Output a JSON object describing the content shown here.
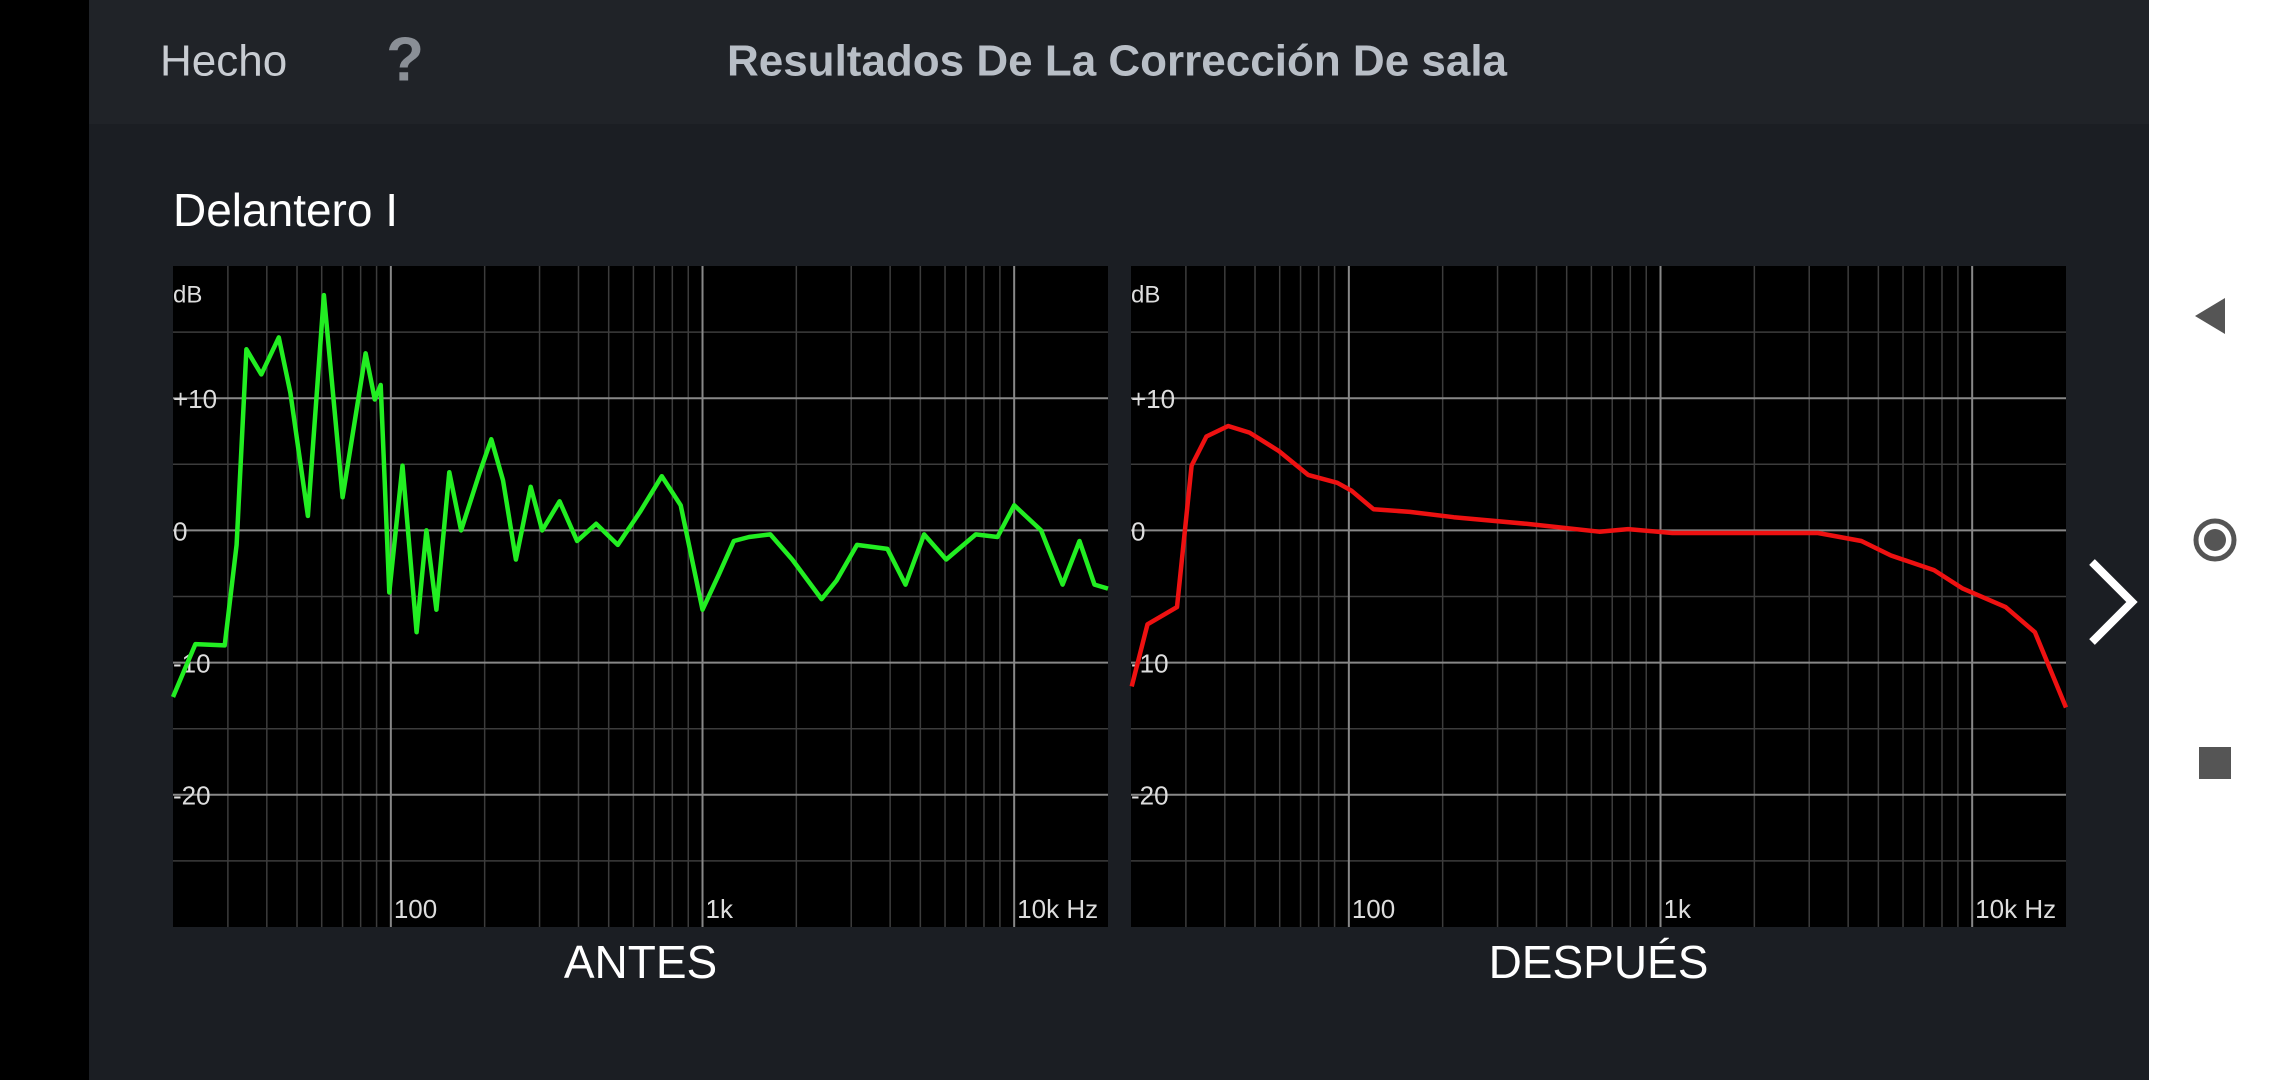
{
  "header": {
    "done": "Hecho",
    "help": "?",
    "title": "Resultados De La Corrección De sala"
  },
  "section": "Delantero I",
  "chart_data": [
    {
      "type": "line",
      "title": "ANTES",
      "y_label": "dB",
      "xscale": "log",
      "grid": true,
      "color": "#22ee22",
      "xlim": [
        20,
        20000
      ],
      "ylim": [
        -30,
        20
      ],
      "xticks": [
        {
          "value": 100,
          "label": "100"
        },
        {
          "value": 1000,
          "label": "1k"
        },
        {
          "value": 10000,
          "label": "10k Hz"
        }
      ],
      "xminor": [
        30,
        40,
        50,
        60,
        70,
        80,
        90,
        200,
        300,
        400,
        500,
        600,
        700,
        800,
        900,
        2000,
        3000,
        4000,
        5000,
        6000,
        7000,
        8000,
        9000
      ],
      "yticks": [
        {
          "value": 10,
          "label": "+10"
        },
        0,
        -10,
        -20
      ],
      "yminor": [
        15,
        5,
        -5,
        -15,
        -25
      ],
      "x": [
        20,
        23.6,
        29.3,
        32,
        34.4,
        38.4,
        43.7,
        47.6,
        54.2,
        61,
        70,
        83,
        88.8,
        92.8,
        98.9,
        109,
        121,
        130,
        140,
        154,
        168,
        193,
        210,
        229,
        252,
        281,
        306,
        348,
        396,
        456,
        535,
        630,
        740,
        851,
        1000,
        1130,
        1260,
        1410,
        1650,
        1940,
        2410,
        2690,
        3130,
        3920,
        4480,
        5140,
        6050,
        7530,
        8840,
        10000,
        12200,
        14300,
        16200,
        18100,
        20000
      ],
      "values": [
        -12.6,
        -8.6,
        -8.7,
        -1.1,
        13.7,
        11.8,
        14.6,
        10.4,
        1.1,
        17.8,
        2.5,
        13.4,
        9.9,
        11,
        -4.7,
        4.9,
        -7.7,
        0,
        -6,
        4.4,
        0,
        4.4,
        6.9,
        3.8,
        -2.2,
        3.3,
        0,
        2.2,
        -0.8,
        0.5,
        -1.1,
        1.4,
        4.1,
        1.9,
        -6,
        -3.3,
        -0.8,
        -0.5,
        -0.3,
        -2.2,
        -5.2,
        -3.8,
        -1.1,
        -1.4,
        -4.1,
        -0.3,
        -2.2,
        -0.3,
        -0.5,
        1.9,
        0,
        -4.1,
        -0.8,
        -4.1,
        -4.4
      ]
    },
    {
      "type": "line",
      "title": "DESPUÉS",
      "y_label": "dB",
      "xscale": "log",
      "grid": true,
      "color": "#ee1111",
      "xlim": [
        20,
        20000
      ],
      "ylim": [
        -30,
        20
      ],
      "xticks": [
        {
          "value": 100,
          "label": "100"
        },
        {
          "value": 1000,
          "label": "1k"
        },
        {
          "value": 10000,
          "label": "10k Hz"
        }
      ],
      "xminor": [
        30,
        40,
        50,
        60,
        70,
        80,
        90,
        200,
        300,
        400,
        500,
        600,
        700,
        800,
        900,
        2000,
        3000,
        4000,
        5000,
        6000,
        7000,
        8000,
        9000
      ],
      "yticks": [
        {
          "value": 10,
          "label": "+10"
        },
        0,
        -10,
        -20
      ],
      "yminor": [
        15,
        5,
        -5,
        -15,
        -25
      ],
      "x": [
        20.1,
        22.6,
        28.1,
        31.3,
        34.9,
        41,
        48,
        59.7,
        74,
        91.8,
        102,
        120,
        157,
        217,
        371,
        636,
        787,
        1090,
        1870,
        3200,
        4410,
        5490,
        7540,
        9330,
        12800,
        15900,
        20000
      ],
      "values": [
        -11.8,
        -7.1,
        -5.8,
        4.9,
        7.1,
        7.9,
        7.4,
        6,
        4.2,
        3.6,
        3,
        1.6,
        1.4,
        1,
        0.5,
        -0.1,
        0.1,
        -0.2,
        -0.2,
        -0.2,
        -0.8,
        -1.9,
        -3,
        -4.4,
        -5.8,
        -7.7,
        -13.4
      ]
    }
  ]
}
